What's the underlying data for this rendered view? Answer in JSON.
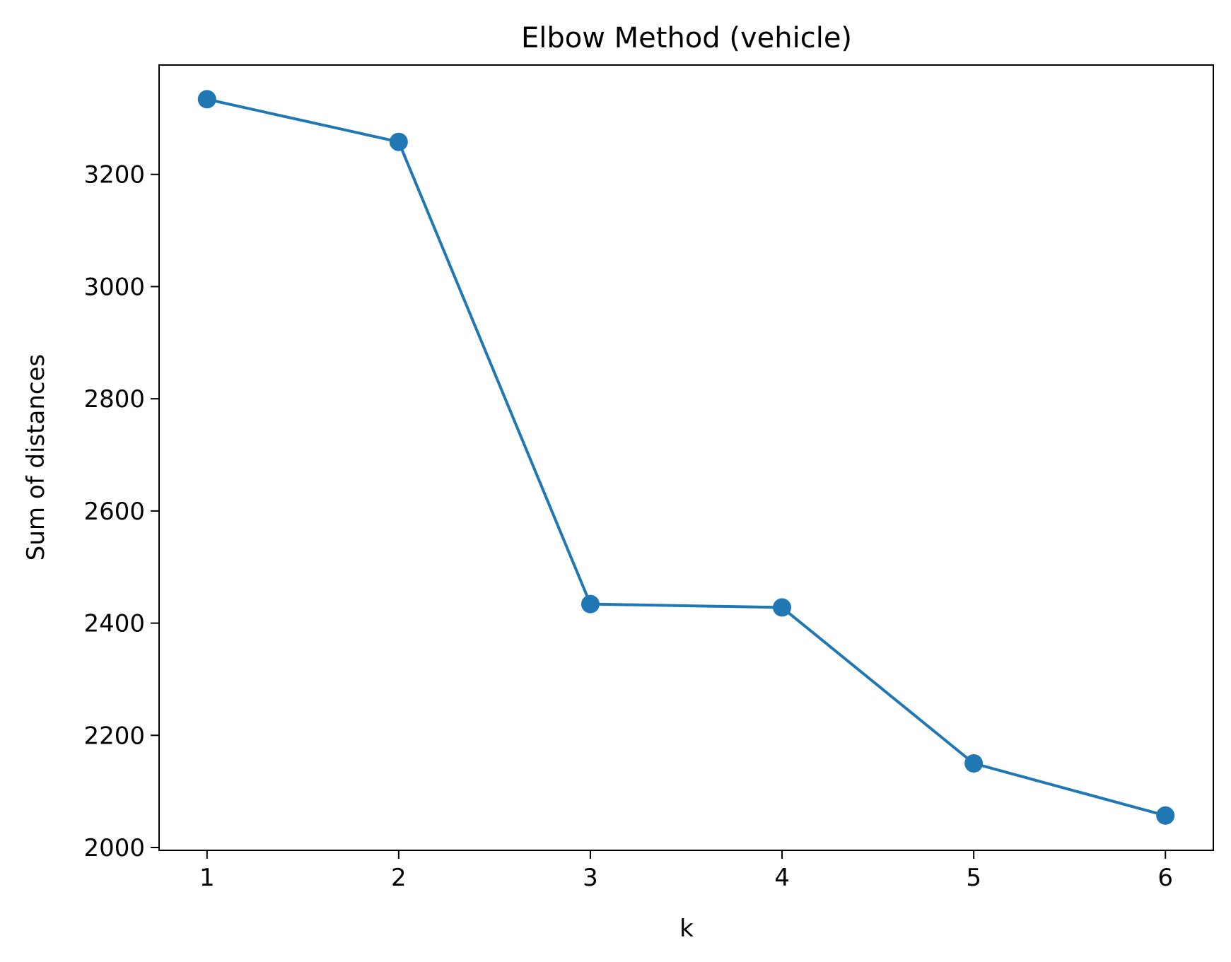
{
  "chart_data": {
    "type": "line",
    "title": "Elbow Method (vehicle)",
    "xlabel": "k",
    "ylabel": "Sum of distances",
    "x": [
      1,
      2,
      3,
      4,
      5,
      6
    ],
    "x_ticks": [
      1,
      2,
      3,
      4,
      5,
      6
    ],
    "xlim": [
      0.75,
      6.25
    ],
    "y_ticks": [
      2000,
      2200,
      2400,
      2600,
      2800,
      3000,
      3200
    ],
    "ylim": [
      1995,
      3395
    ],
    "series": [
      {
        "values": [
          3334,
          3258,
          2434,
          2428,
          2150,
          2057
        ],
        "color": "#1f77b4",
        "marker": "circle"
      }
    ],
    "grid": false,
    "legend": "none"
  }
}
